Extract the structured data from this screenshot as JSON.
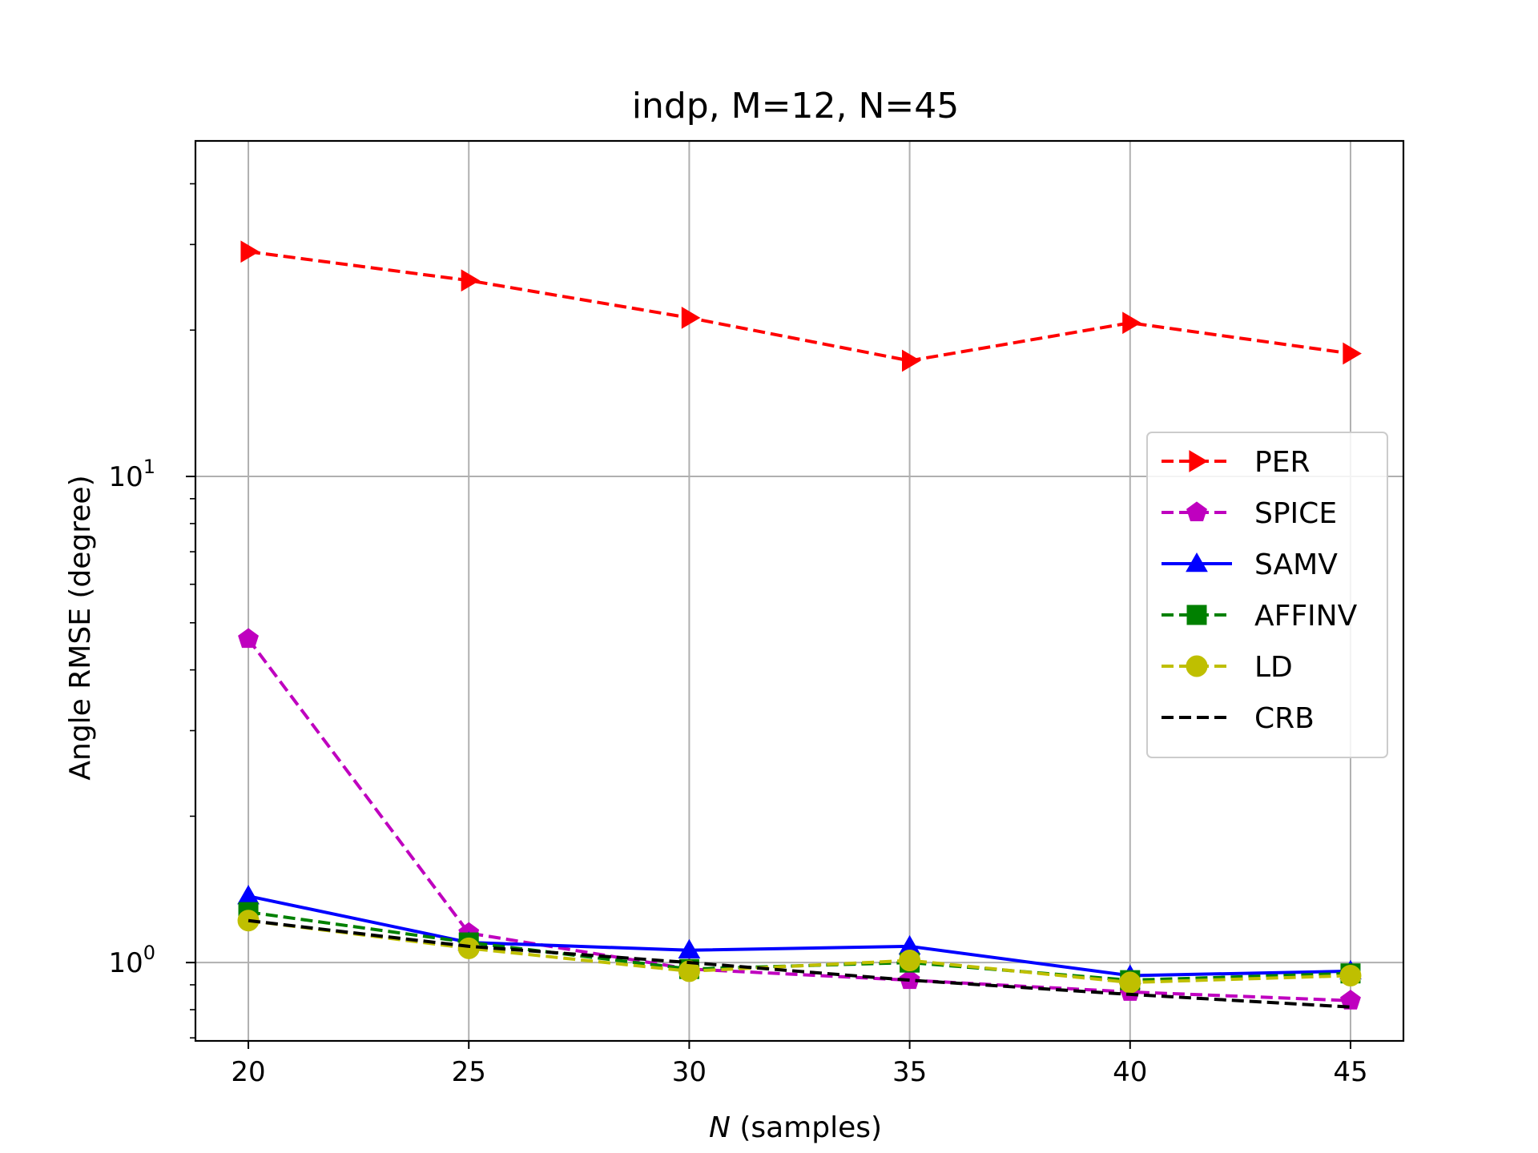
{
  "chart_data": {
    "type": "line",
    "title": "indp, M=12, N=45",
    "xlabel_var": "N",
    "xlabel_rest": " (samples)",
    "ylabel": "Angle RMSE (degree)",
    "x": [
      20,
      25,
      30,
      35,
      40,
      45
    ],
    "xticks": [
      20,
      25,
      30,
      35,
      40,
      45
    ],
    "xlim": [
      18.8,
      46.2
    ],
    "ylim": [
      0.69,
      49
    ],
    "yscale": "log",
    "ytick_labels": [
      {
        "base": "10",
        "exp": "0"
      },
      {
        "base": "10",
        "exp": "1"
      }
    ],
    "grid": true,
    "legend_position": "right",
    "series": [
      {
        "name": "PER",
        "values": [
          29.0,
          25.3,
          21.2,
          17.3,
          20.7,
          17.9
        ],
        "color": "#ff0000",
        "dash": "dashed",
        "marker": "triangle-right"
      },
      {
        "name": "SPICE",
        "values": [
          4.63,
          1.15,
          0.97,
          0.92,
          0.87,
          0.835
        ],
        "color": "#bf00bf",
        "dash": "dashed",
        "marker": "pentagon"
      },
      {
        "name": "SAMV",
        "values": [
          1.37,
          1.1,
          1.06,
          1.08,
          0.94,
          0.96
        ],
        "color": "#0000ff",
        "dash": "solid",
        "marker": "triangle-up"
      },
      {
        "name": "AFFINV",
        "values": [
          1.27,
          1.1,
          0.97,
          1.0,
          0.92,
          0.95
        ],
        "color": "#008000",
        "dash": "dashed",
        "marker": "square"
      },
      {
        "name": "LD",
        "values": [
          1.22,
          1.07,
          0.96,
          1.01,
          0.91,
          0.94
        ],
        "color": "#bfbf00",
        "dash": "dashed",
        "marker": "circle"
      },
      {
        "name": "CRB",
        "values": [
          1.22,
          1.08,
          1.0,
          0.92,
          0.86,
          0.81
        ],
        "color": "#000000",
        "dash": "dashed",
        "marker": "none"
      }
    ]
  }
}
